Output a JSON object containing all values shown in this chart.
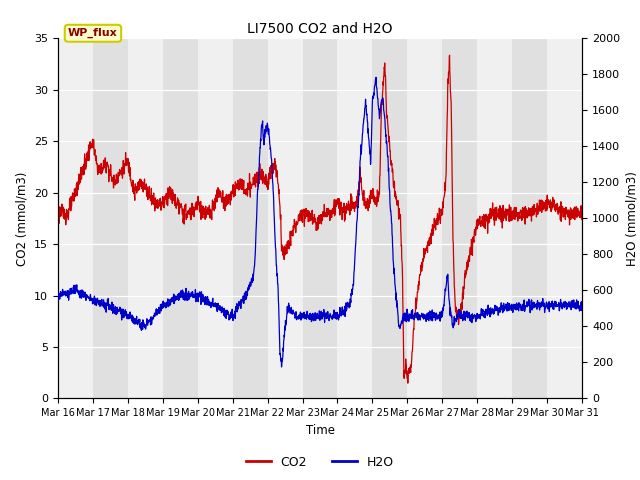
{
  "title": "LI7500 CO2 and H2O",
  "xlabel": "Time",
  "ylabel_left": "CO2 (mmol/m3)",
  "ylabel_right": "H2O (mmol/m3)",
  "annotation": "WP_flux",
  "x_tick_labels": [
    "Mar 16",
    "Mar 17",
    "Mar 18",
    "Mar 19",
    "Mar 20",
    "Mar 21",
    "Mar 22",
    "Mar 23",
    "Mar 24",
    "Mar 25",
    "Mar 26",
    "Mar 27",
    "Mar 28",
    "Mar 29",
    "Mar 30",
    "Mar 31"
  ],
  "ylim_left": [
    0,
    35
  ],
  "ylim_right": [
    0,
    2000
  ],
  "yticks_left": [
    0,
    5,
    10,
    15,
    20,
    25,
    30,
    35
  ],
  "yticks_right": [
    0,
    200,
    400,
    600,
    800,
    1000,
    1200,
    1400,
    1600,
    1800,
    2000
  ],
  "color_co2": "#CC0000",
  "color_h2o": "#0000CC",
  "band_color": "#DCDCDC",
  "grid_color": "#CCCCCC",
  "legend_co2": "CO2",
  "legend_h2o": "H2O",
  "n_points": 2000
}
